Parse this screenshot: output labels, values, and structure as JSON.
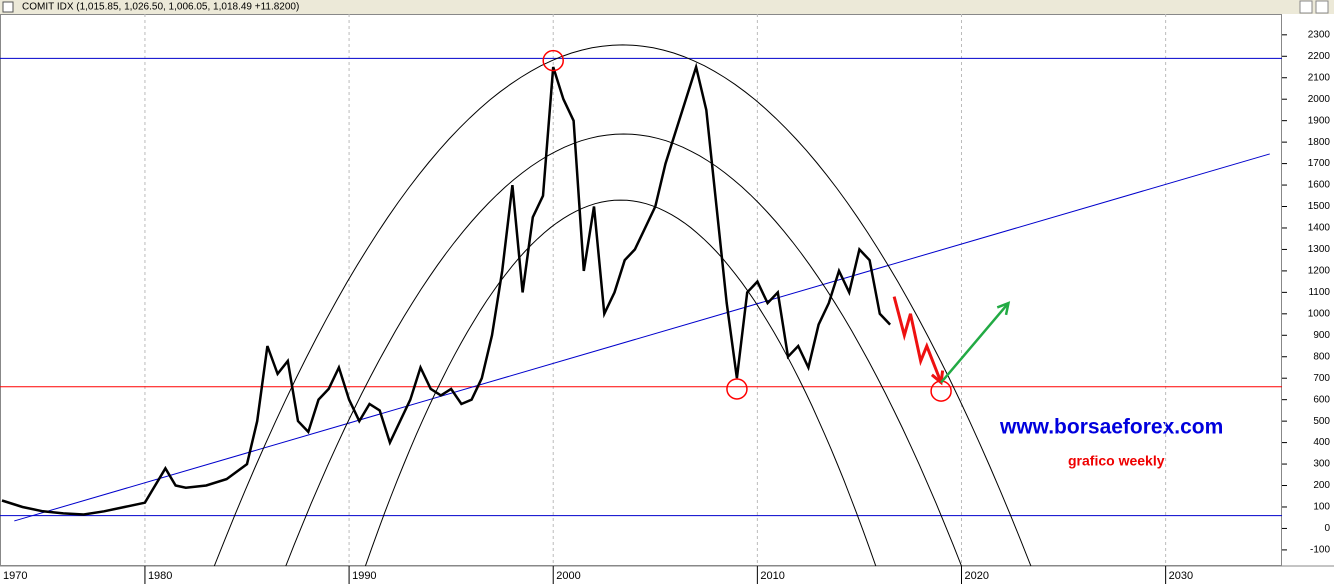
{
  "chart_data": {
    "type": "line",
    "title": "COMIT IDX (1,015.85, 1,026.50, 1,006.05, 1,018.49 +11.8200)",
    "x": [
      1973,
      1974,
      1975,
      1976,
      1977,
      1978,
      1979,
      1980,
      1981,
      1981.5,
      1982,
      1983,
      1984,
      1985,
      1985.5,
      1986,
      1986.5,
      1987,
      1987.5,
      1988,
      1988.5,
      1989,
      1989.5,
      1990,
      1990.5,
      1991,
      1991.5,
      1992,
      1992.5,
      1993,
      1993.5,
      1994,
      1994.5,
      1995,
      1995.5,
      1996,
      1996.5,
      1997,
      1997.5,
      1998,
      1998.5,
      1999,
      1999.5,
      2000,
      2000.5,
      2001,
      2001.5,
      2002,
      2002.5,
      2003,
      2003.5,
      2004,
      2004.5,
      2005,
      2005.5,
      2006,
      2006.5,
      2007,
      2007.5,
      2008,
      2008.5,
      2009,
      2009.5,
      2010,
      2010.5,
      2011,
      2011.5,
      2012,
      2012.5,
      2013,
      2013.5,
      2014,
      2014.5,
      2015,
      2015.5,
      2016,
      2016.5
    ],
    "values": [
      130,
      100,
      80,
      70,
      65,
      80,
      100,
      120,
      280,
      200,
      190,
      200,
      230,
      300,
      500,
      850,
      720,
      780,
      500,
      450,
      600,
      650,
      750,
      600,
      500,
      580,
      550,
      400,
      500,
      600,
      750,
      650,
      620,
      650,
      580,
      600,
      700,
      900,
      1200,
      1600,
      1100,
      1450,
      1550,
      2150,
      2000,
      1900,
      1200,
      1500,
      1000,
      1100,
      1250,
      1300,
      1400,
      1500,
      1700,
      1850,
      2000,
      2150,
      1950,
      1500,
      1050,
      700,
      1100,
      1150,
      1050,
      1100,
      800,
      850,
      750,
      950,
      1050,
      1200,
      1100,
      1300,
      1250,
      1000,
      950
    ],
    "color": "#000000",
    "xlim": [
      1972.9,
      2035.7
    ],
    "xticks": [
      1980,
      1990,
      2000,
      2010,
      2020,
      2030
    ],
    "x_edge_label": "1970",
    "ylim": [
      -175,
      2397
    ],
    "yticks": [
      -100,
      0,
      100,
      200,
      300,
      400,
      500,
      600,
      700,
      800,
      900,
      1000,
      1100,
      1200,
      1300,
      1400,
      1500,
      1600,
      1700,
      1800,
      1900,
      2000,
      2100,
      2200,
      2300
    ],
    "grid": true,
    "hlines": [
      {
        "value": 2190,
        "color": "#0000cc"
      },
      {
        "value": 660,
        "color": "#ff0000"
      },
      {
        "value": 60,
        "color": "#0000cc"
      }
    ],
    "trendline": {
      "x": [
        1973.6,
        2035.1
      ],
      "y": [
        35,
        1745
      ],
      "color": "#0000cc"
    },
    "arcs": [
      {
        "x": [
          1983.4,
          2023.4
        ],
        "peak": 2253
      },
      {
        "x": [
          1986.9,
          2020.0
        ],
        "peak": 1838
      },
      {
        "x": [
          1990.8,
          2015.8
        ],
        "peak": 1530
      }
    ],
    "circles": {
      "x": [
        2000,
        2009,
        2019
      ],
      "y": [
        2180,
        650,
        640
      ],
      "color": "#ff0000"
    },
    "down_arrow": {
      "x": [
        2016.7,
        2017.2,
        2017.5,
        2018,
        2018.3,
        2019
      ],
      "y": [
        1080,
        900,
        1000,
        780,
        850,
        680
      ],
      "color": "#ee1111"
    },
    "up_arrow": {
      "x": [
        2019,
        2022.3
      ],
      "y": [
        680,
        1050
      ],
      "color": "#22aa44"
    },
    "website": "www.borsaeforex.com",
    "note": "grafico weekly"
  }
}
